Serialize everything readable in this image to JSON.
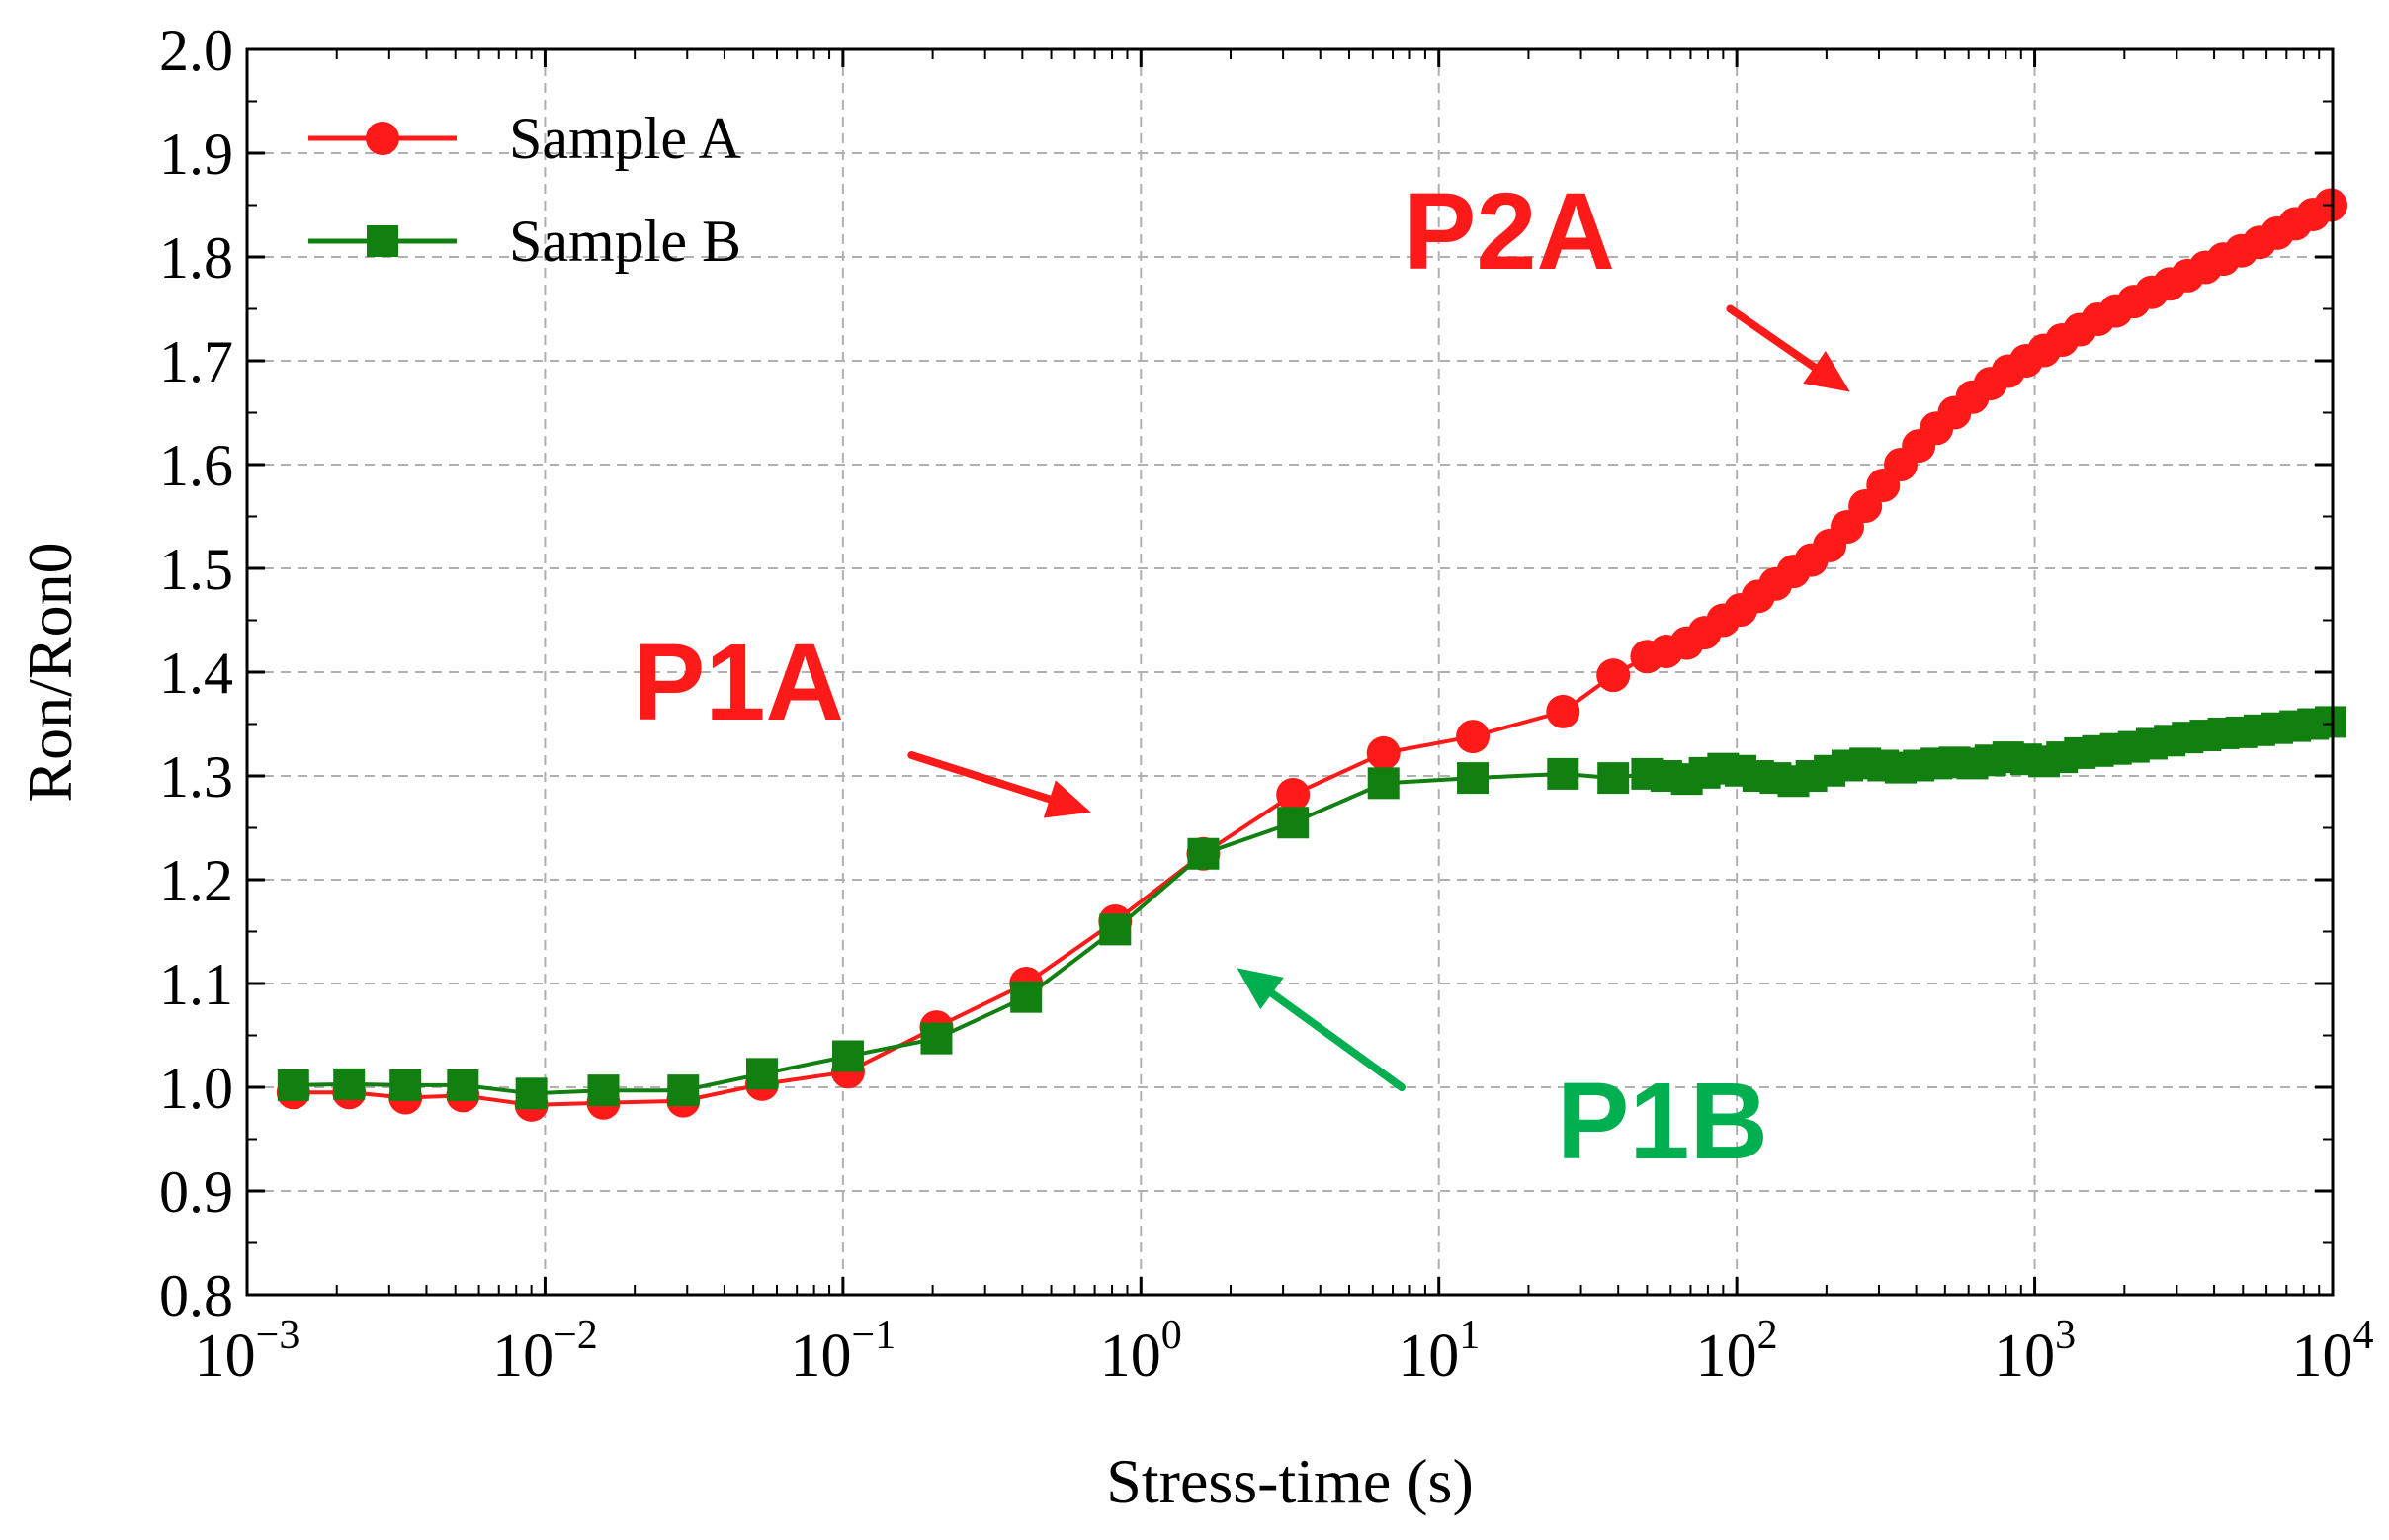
{
  "chart_data": {
    "type": "line",
    "title": "",
    "xlabel": "Stress-time (s)",
    "ylabel": "Ron/Ron0",
    "xscale": "log",
    "xlim": [
      0.001,
      10000
    ],
    "ylim": [
      0.8,
      2.0
    ],
    "grid": true,
    "legend_position": "top-left",
    "x_ticks": [
      {
        "base": "10",
        "exp": "−3",
        "value": 0.001
      },
      {
        "base": "10",
        "exp": "−2",
        "value": 0.01
      },
      {
        "base": "10",
        "exp": "−1",
        "value": 0.1
      },
      {
        "base": "10",
        "exp": "0",
        "value": 1
      },
      {
        "base": "10",
        "exp": "1",
        "value": 10
      },
      {
        "base": "10",
        "exp": "2",
        "value": 100
      },
      {
        "base": "10",
        "exp": "3",
        "value": 1000
      },
      {
        "base": "10",
        "exp": "4",
        "value": 10000
      }
    ],
    "y_ticks": [
      "0.8",
      "0.9",
      "1.0",
      "1.1",
      "1.2",
      "1.3",
      "1.4",
      "1.5",
      "1.6",
      "1.7",
      "1.8",
      "1.9",
      "2.0"
    ],
    "series": [
      {
        "name": "Sample A",
        "color": "#ff1a1a",
        "marker": "circle",
        "points": [
          [
            0.00143,
            0.995
          ],
          [
            0.0022,
            0.995
          ],
          [
            0.0034,
            0.99
          ],
          [
            0.0053,
            0.992
          ],
          [
            0.009,
            0.983
          ],
          [
            0.0157,
            0.985
          ],
          [
            0.0291,
            0.987
          ],
          [
            0.0535,
            1.003
          ],
          [
            0.104,
            1.015
          ],
          [
            0.206,
            1.058
          ],
          [
            0.412,
            1.1
          ],
          [
            0.82,
            1.16
          ],
          [
            1.62,
            1.225
          ],
          [
            3.24,
            1.282
          ],
          [
            6.52,
            1.322
          ],
          [
            13.0,
            1.338
          ],
          [
            26.1,
            1.362
          ],
          [
            38.5,
            1.397
          ],
          [
            50.0,
            1.415
          ],
          [
            58.0,
            1.42
          ],
          [
            68.0,
            1.428
          ],
          [
            78.0,
            1.438
          ],
          [
            90.0,
            1.45
          ],
          [
            103.0,
            1.46
          ],
          [
            118.0,
            1.473
          ],
          [
            135.0,
            1.485
          ],
          [
            155.0,
            1.497
          ],
          [
            178.0,
            1.508
          ],
          [
            205.0,
            1.522
          ],
          [
            235.0,
            1.54
          ],
          [
            270.0,
            1.56
          ],
          [
            310.0,
            1.58
          ],
          [
            355.0,
            1.6
          ],
          [
            408.0,
            1.618
          ],
          [
            468.0,
            1.635
          ],
          [
            538.0,
            1.65
          ],
          [
            618.0,
            1.665
          ],
          [
            710.0,
            1.678
          ],
          [
            815.0,
            1.69
          ],
          [
            936.0,
            1.7
          ],
          [
            1075.0,
            1.71
          ],
          [
            1235.0,
            1.72
          ],
          [
            1418.0,
            1.73
          ],
          [
            1630.0,
            1.74
          ],
          [
            1872.0,
            1.748
          ],
          [
            2150.0,
            1.757
          ],
          [
            2470.0,
            1.766
          ],
          [
            2838.0,
            1.774
          ],
          [
            3260.0,
            1.782
          ],
          [
            3745.0,
            1.79
          ],
          [
            4300.0,
            1.798
          ],
          [
            4940.0,
            1.806
          ],
          [
            5675.0,
            1.814
          ],
          [
            6520.0,
            1.823
          ],
          [
            7490.0,
            1.832
          ],
          [
            8600.0,
            1.841
          ],
          [
            9850.0,
            1.85
          ]
        ]
      },
      {
        "name": "Sample B",
        "color": "#118011",
        "marker": "square",
        "points": [
          [
            0.00143,
            1.002
          ],
          [
            0.0022,
            1.003
          ],
          [
            0.0034,
            1.002
          ],
          [
            0.0053,
            1.002
          ],
          [
            0.009,
            0.994
          ],
          [
            0.0157,
            0.997
          ],
          [
            0.0291,
            0.997
          ],
          [
            0.0535,
            1.013
          ],
          [
            0.104,
            1.03
          ],
          [
            0.206,
            1.047
          ],
          [
            0.412,
            1.087
          ],
          [
            0.82,
            1.152
          ],
          [
            1.62,
            1.225
          ],
          [
            3.24,
            1.255
          ],
          [
            6.52,
            1.293
          ],
          [
            13.0,
            1.298
          ],
          [
            26.1,
            1.302
          ],
          [
            38.5,
            1.298
          ],
          [
            50.0,
            1.302
          ],
          [
            58.0,
            1.3
          ],
          [
            68.0,
            1.297
          ],
          [
            78.0,
            1.303
          ],
          [
            90.0,
            1.307
          ],
          [
            103.0,
            1.305
          ],
          [
            118.0,
            1.3
          ],
          [
            135.0,
            1.298
          ],
          [
            155.0,
            1.295
          ],
          [
            178.0,
            1.3
          ],
          [
            205.0,
            1.305
          ],
          [
            235.0,
            1.31
          ],
          [
            270.0,
            1.312
          ],
          [
            310.0,
            1.31
          ],
          [
            355.0,
            1.308
          ],
          [
            408.0,
            1.31
          ],
          [
            468.0,
            1.312
          ],
          [
            538.0,
            1.313
          ],
          [
            618.0,
            1.312
          ],
          [
            710.0,
            1.315
          ],
          [
            815.0,
            1.318
          ],
          [
            936.0,
            1.316
          ],
          [
            1075.0,
            1.314
          ],
          [
            1235.0,
            1.318
          ],
          [
            1418.0,
            1.322
          ],
          [
            1630.0,
            1.324
          ],
          [
            1872.0,
            1.326
          ],
          [
            2150.0,
            1.328
          ],
          [
            2470.0,
            1.331
          ],
          [
            2838.0,
            1.334
          ],
          [
            3260.0,
            1.337
          ],
          [
            3745.0,
            1.339
          ],
          [
            4300.0,
            1.341
          ],
          [
            4940.0,
            1.342
          ],
          [
            5675.0,
            1.344
          ],
          [
            6520.0,
            1.346
          ],
          [
            7490.0,
            1.348
          ],
          [
            8600.0,
            1.35
          ],
          [
            9850.0,
            1.352
          ]
        ]
      }
    ],
    "annotations": [
      {
        "text": "P2A",
        "color": "#ff1a1a",
        "arrow_from": [
          95,
          1.75
        ],
        "arrow_to": [
          240,
          1.67
        ]
      },
      {
        "text": "P1A",
        "color": "#ff1a1a",
        "arrow_from": [
          0.17,
          1.32
        ],
        "arrow_to": [
          0.68,
          1.265
        ]
      },
      {
        "text": "P1B",
        "color": "#00b050",
        "arrow_from": [
          7.5,
          1.0
        ],
        "arrow_to": [
          2.1,
          1.115
        ]
      }
    ]
  }
}
